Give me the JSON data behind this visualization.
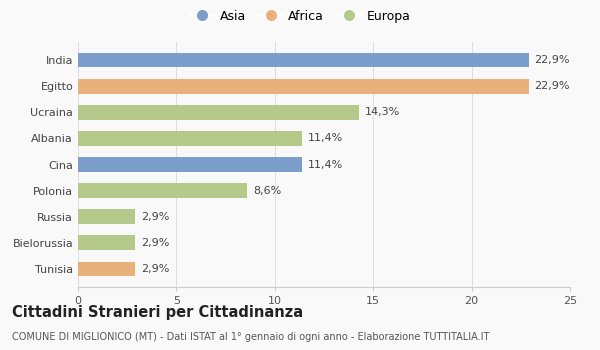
{
  "categories": [
    "Tunisia",
    "Bielorussia",
    "Russia",
    "Polonia",
    "Cina",
    "Albania",
    "Ucraina",
    "Egitto",
    "India"
  ],
  "values": [
    2.9,
    2.9,
    2.9,
    8.6,
    11.4,
    11.4,
    14.3,
    22.9,
    22.9
  ],
  "labels": [
    "2,9%",
    "2,9%",
    "2,9%",
    "8,6%",
    "11,4%",
    "11,4%",
    "14,3%",
    "22,9%",
    "22,9%"
  ],
  "colors": [
    "#e8b07a",
    "#b5c98a",
    "#b5c98a",
    "#b5c98a",
    "#7b9dc9",
    "#b5c98a",
    "#b5c98a",
    "#e8b07a",
    "#7b9dc9"
  ],
  "legend_labels": [
    "Asia",
    "Africa",
    "Europa"
  ],
  "legend_colors": [
    "#7b9dc9",
    "#e8b07a",
    "#b5c98a"
  ],
  "title_bold": "Cittadini Stranieri per Cittadinanza",
  "title_sub": "COMUNE DI MIGLIONICO (MT) - Dati ISTAT al 1° gennaio di ogni anno - Elaborazione TUTTITALIA.IT",
  "xlim": [
    0,
    25
  ],
  "xticks": [
    0,
    5,
    10,
    15,
    20,
    25
  ],
  "bg_color": "#f9f9f9",
  "bar_height": 0.55,
  "label_fontsize": 8,
  "tick_fontsize": 8,
  "title_fontsize": 10.5,
  "sub_fontsize": 7
}
